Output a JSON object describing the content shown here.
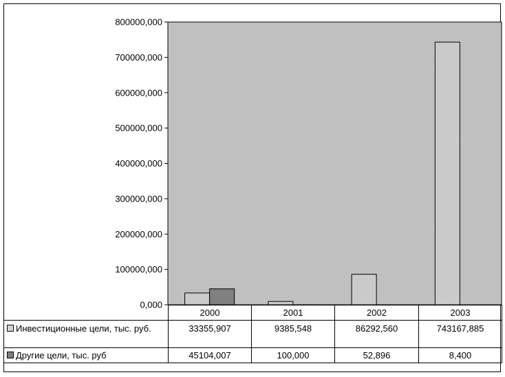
{
  "chart_data": {
    "type": "bar",
    "categories": [
      "2000",
      "2001",
      "2002",
      "2003"
    ],
    "series": [
      {
        "name": "Инвестиционные цели, тыс. руб.",
        "values": [
          33355.907,
          9385.548,
          86292.56,
          743167.885
        ],
        "labels": [
          "33355,907",
          "9385,548",
          "86292,560",
          "743167,885"
        ],
        "color": "#d9d9d9"
      },
      {
        "name": "Другие цели, тыс. руб",
        "values": [
          45104.007,
          100.0,
          52.896,
          8.4
        ],
        "labels": [
          "45104,007",
          "100,000",
          "52,896",
          "8,400"
        ],
        "color": "#808080"
      }
    ],
    "ylim": [
      0,
      800000
    ],
    "yticks": [
      0,
      100000,
      200000,
      300000,
      400000,
      500000,
      600000,
      700000,
      800000
    ],
    "ytick_labels": [
      "0,000",
      "100000,000",
      "200000,000",
      "300000,000",
      "400000,000",
      "500000,000",
      "600000,000",
      "700000,000",
      "800000,000"
    ],
    "plot_background": "#c0c0c0",
    "grid": false,
    "legend": "data-table-bottom"
  }
}
